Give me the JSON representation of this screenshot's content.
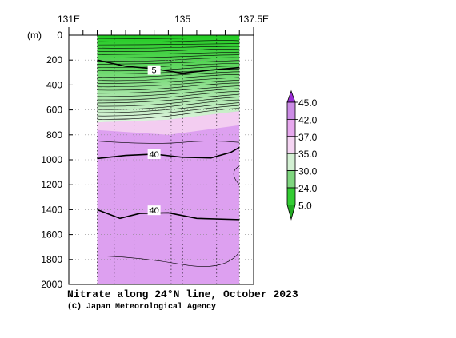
{
  "chart_data": {
    "type": "contour",
    "title": "Nitrate along 24°N line, October 2023",
    "credit": "(C) Japan Meteorological Agency",
    "y_unit_label": "(m)",
    "x_ticks": [
      "131E",
      "135",
      "137.5E"
    ],
    "x_tick_values": [
      131,
      135,
      137.5
    ],
    "xlim": [
      131,
      137.5
    ],
    "data_xlim": [
      132,
      137.0
    ],
    "y_ticks": [
      "0",
      "200",
      "400",
      "600",
      "800",
      "1000",
      "1200",
      "1400",
      "1600",
      "1800",
      "2000"
    ],
    "y_tick_values": [
      0,
      200,
      400,
      600,
      800,
      1000,
      1200,
      1400,
      1600,
      1800,
      2000
    ],
    "ylim": [
      0,
      2000
    ],
    "y_inverted": true,
    "colorbar": {
      "levels": [
        "45.0",
        "42.0",
        "37.0",
        "35.0",
        "30.0",
        "24.0",
        "5.0"
      ],
      "level_values": [
        45,
        42,
        37,
        35,
        30,
        24,
        5
      ],
      "colors": [
        "#9b2dd6",
        "#cc8ce6",
        "#e7a8ee",
        "#f5d5f3",
        "#d3f0d3",
        "#7fd67f",
        "#33cc33",
        "#22aa22"
      ]
    },
    "zones": {
      "green_bottom_depth_left": 700,
      "green_bottom_depth_mid": 640,
      "green_bottom_depth_right": 610,
      "light_pink_band_bottom_depth": 800,
      "pink_bottom_depth": 2000
    },
    "contour_labels": [
      {
        "text": "5",
        "x": 134.0,
        "depth": 280
      },
      {
        "text": "40",
        "x": 134.0,
        "depth": 955
      },
      {
        "text": "40",
        "x": 134.0,
        "depth": 1405
      }
    ],
    "labeled_contours": [
      {
        "value": 5,
        "points": [
          [
            132.0,
            200
          ],
          [
            133.0,
            250
          ],
          [
            134.0,
            270
          ],
          [
            135.0,
            305
          ],
          [
            136.0,
            280
          ],
          [
            137.0,
            260
          ]
        ]
      },
      {
        "value": 40,
        "points": [
          [
            132.0,
            990
          ],
          [
            133.0,
            965
          ],
          [
            134.0,
            955
          ],
          [
            135.0,
            980
          ],
          [
            136.0,
            985
          ],
          [
            136.7,
            940
          ],
          [
            137.0,
            900
          ]
        ]
      },
      {
        "value": 40,
        "points": [
          [
            132.0,
            1400
          ],
          [
            132.8,
            1470
          ],
          [
            133.5,
            1430
          ],
          [
            134.5,
            1425
          ],
          [
            135.5,
            1470
          ],
          [
            137.0,
            1480
          ]
        ]
      }
    ],
    "station_x": [
      132.0,
      132.6,
      133.3,
      134.0,
      134.6,
      135.0,
      136.2,
      137.0
    ]
  }
}
